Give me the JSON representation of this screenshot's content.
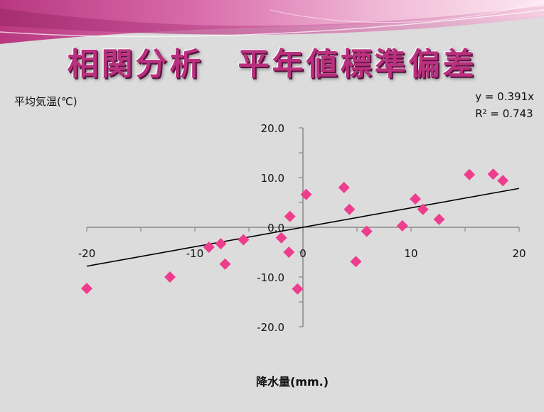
{
  "title": "相関分析　平年値標準偏差",
  "chart_data": {
    "type": "scatter",
    "ylabel": "平均気温(℃)",
    "xlabel": "降水量(mm.)",
    "xlim": [
      -20,
      20
    ],
    "ylim": [
      -20,
      20
    ],
    "xticks": [
      -20,
      -10,
      0,
      10,
      20
    ],
    "xtick_labels": [
      "-20",
      "-10",
      "0",
      "10",
      "20"
    ],
    "yticks": [
      -20,
      -10,
      0,
      10,
      20
    ],
    "ytick_labels": [
      "-20.0",
      "-10.0",
      "0.0",
      "10.0",
      "20.0"
    ],
    "equation": "y = 0.391x",
    "r_squared": "R² = 0.743",
    "trendline": {
      "slope": 0.391,
      "intercept": 0,
      "x_range": [
        -20,
        20
      ]
    },
    "marker_color": "#ee3d8d",
    "points": [
      {
        "x": -20.0,
        "y": -12.3
      },
      {
        "x": -12.3,
        "y": -10.0
      },
      {
        "x": -8.7,
        "y": -4.0
      },
      {
        "x": -7.6,
        "y": -3.3
      },
      {
        "x": -7.2,
        "y": -7.4
      },
      {
        "x": -5.5,
        "y": -2.5
      },
      {
        "x": -2.0,
        "y": -2.1
      },
      {
        "x": -1.2,
        "y": 2.2
      },
      {
        "x": -1.3,
        "y": -5.0
      },
      {
        "x": -0.5,
        "y": -12.4
      },
      {
        "x": 0.3,
        "y": 6.6
      },
      {
        "x": 3.8,
        "y": 8.0
      },
      {
        "x": 4.3,
        "y": 3.6
      },
      {
        "x": 4.9,
        "y": -6.9
      },
      {
        "x": 5.9,
        "y": -0.8
      },
      {
        "x": 9.2,
        "y": 0.3
      },
      {
        "x": 10.4,
        "y": 5.7
      },
      {
        "x": 11.1,
        "y": 3.6
      },
      {
        "x": 12.6,
        "y": 1.6
      },
      {
        "x": 15.4,
        "y": 10.6
      },
      {
        "x": 17.6,
        "y": 10.7
      },
      {
        "x": 18.5,
        "y": 9.4
      }
    ]
  }
}
